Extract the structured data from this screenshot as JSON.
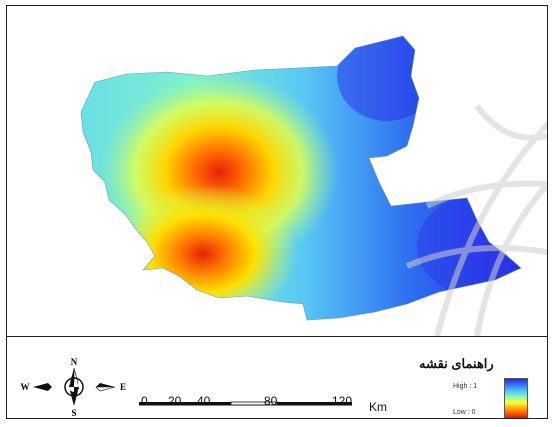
{
  "legend": {
    "title": "راهنمای نقشه",
    "high_label": "High : 1",
    "low_label": "Low : 0",
    "ramp_colors": [
      "#2a24e6",
      "#3fa9ff",
      "#7ff5c8",
      "#ffff33",
      "#ff8a00",
      "#e8200a"
    ]
  },
  "compass": {
    "north": "N",
    "south": "S",
    "east": "E",
    "west": "W"
  },
  "scale_bar": {
    "ticks": [
      "0",
      "20",
      "40",
      "80",
      "120"
    ],
    "unit": "Km"
  },
  "colors": {
    "high": "#2a24e6",
    "low": "#e8200a",
    "watermark": "#d8d8d8"
  }
}
